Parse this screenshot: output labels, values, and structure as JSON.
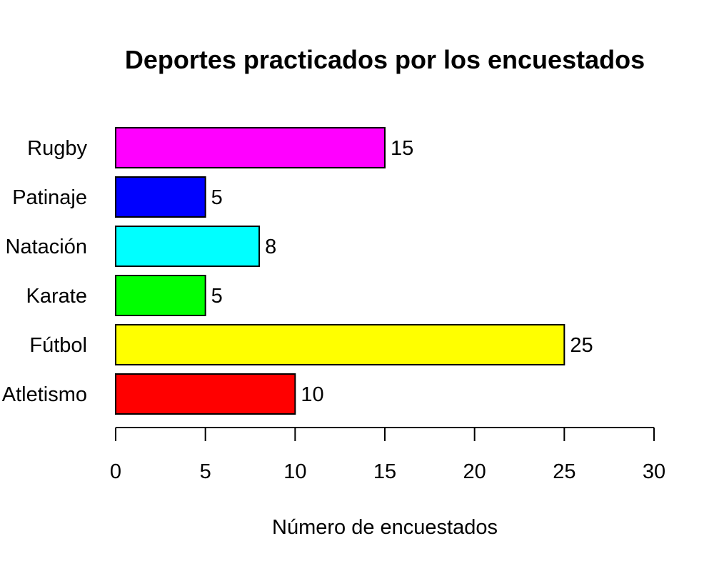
{
  "chart_data": {
    "type": "bar",
    "orientation": "horizontal",
    "title": "Deportes practicados por los encuestados",
    "xlabel": "Número de encuestados",
    "ylabel": "",
    "categories": [
      "Atletismo",
      "Fútbol",
      "Karate",
      "Natación",
      "Patinaje",
      "Rugby"
    ],
    "values": [
      10,
      25,
      5,
      8,
      5,
      15
    ],
    "colors": [
      "#ff0000",
      "#ffff00",
      "#00ff00",
      "#00ffff",
      "#0000ff",
      "#ff00ff"
    ],
    "data_labels": [
      "10",
      "25",
      "5",
      "8",
      "5",
      "15"
    ],
    "xlim": [
      0,
      30
    ],
    "xticks": [
      0,
      5,
      10,
      15,
      20,
      25,
      30
    ],
    "grid": false,
    "legend": "none"
  }
}
